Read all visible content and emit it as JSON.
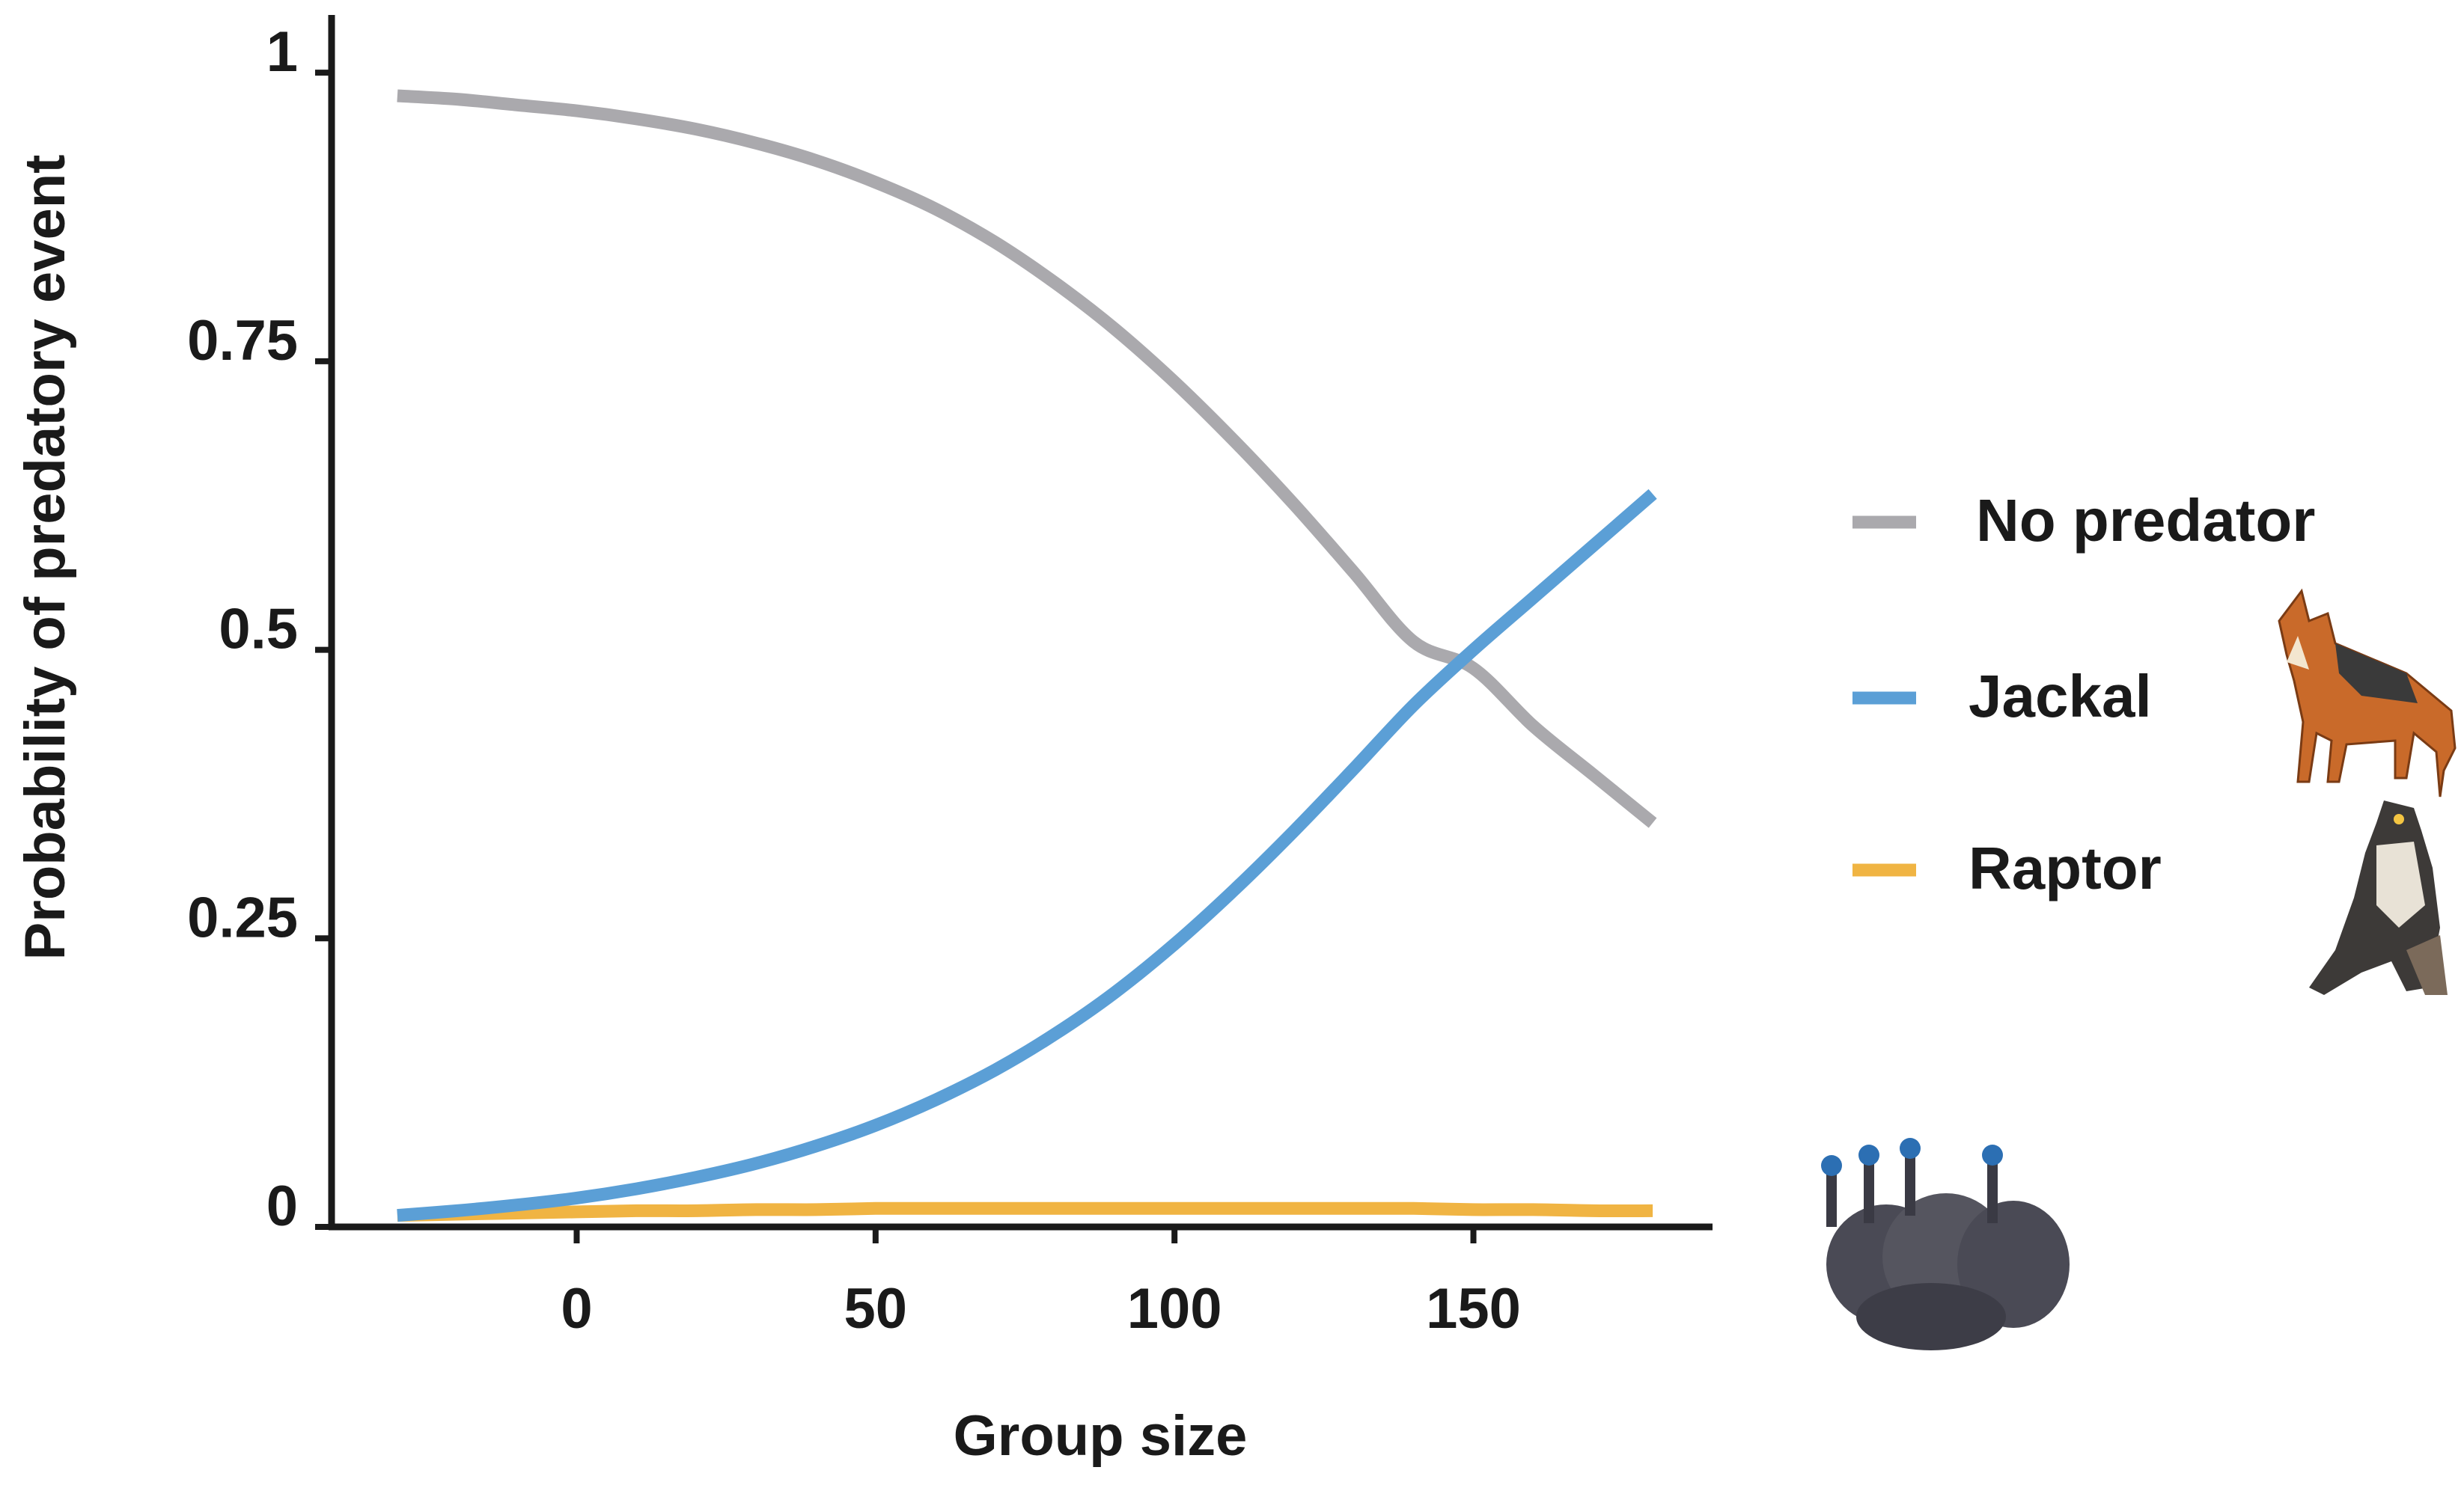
{
  "chart_data": {
    "type": "line",
    "title": "",
    "xlabel": "Group size",
    "ylabel": "Probability of predatory event",
    "xlim": [
      -41,
      190
    ],
    "ylim": [
      0,
      1.05
    ],
    "x_ticks": [
      0,
      50,
      100,
      150
    ],
    "x_tick_labels": [
      "0",
      "50",
      "100",
      "150"
    ],
    "y_ticks": [
      0,
      0.25,
      0.5,
      0.75,
      1
    ],
    "y_tick_labels": [
      "0",
      "0.25",
      "0.5",
      "0.75",
      "1"
    ],
    "grid": false,
    "legend_position": "right",
    "x": [
      -30,
      -20,
      -10,
      0,
      10,
      20,
      30,
      40,
      50,
      60,
      70,
      80,
      90,
      100,
      110,
      120,
      130,
      140,
      150,
      160,
      170,
      180
    ],
    "series": [
      {
        "name": "No predator",
        "color": "#aaa9ad",
        "values": [
          0.98,
          0.977,
          0.972,
          0.967,
          0.96,
          0.951,
          0.939,
          0.924,
          0.905,
          0.882,
          0.853,
          0.818,
          0.778,
          0.732,
          0.681,
          0.626,
          0.567,
          0.507,
          0.484,
          0.434,
          0.392,
          0.35
        ]
      },
      {
        "name": "Jackal",
        "color": "#5b9fd6",
        "values": [
          0.01,
          0.014,
          0.019,
          0.025,
          0.033,
          0.043,
          0.055,
          0.07,
          0.088,
          0.11,
          0.136,
          0.167,
          0.203,
          0.245,
          0.292,
          0.343,
          0.397,
          0.452,
          0.5,
          0.545,
          0.59,
          0.635
        ]
      },
      {
        "name": "Raptor",
        "color": "#f0b443",
        "values": [
          0.01,
          0.011,
          0.012,
          0.013,
          0.014,
          0.014,
          0.015,
          0.015,
          0.016,
          0.016,
          0.016,
          0.016,
          0.016,
          0.016,
          0.016,
          0.016,
          0.016,
          0.016,
          0.015,
          0.015,
          0.014,
          0.014
        ]
      }
    ]
  },
  "icons": {
    "jackal": "jackal-photo-icon",
    "raptor": "raptor-photo-icon",
    "guineafowl": "guineafowl-photo-icon"
  }
}
